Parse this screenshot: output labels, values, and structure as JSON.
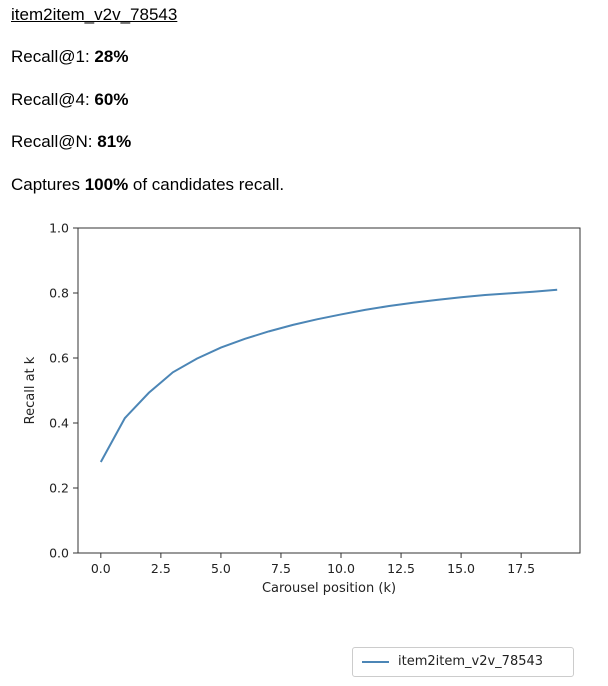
{
  "report": {
    "title": "item2item_v2v_78543",
    "metrics": [
      {
        "prefix": "Recall@1: ",
        "value": "28%",
        "suffix": ""
      },
      {
        "prefix": "Recall@4: ",
        "value": "60%",
        "suffix": ""
      },
      {
        "prefix": "Recall@N: ",
        "value": "81%",
        "suffix": ""
      },
      {
        "prefix": "Captures ",
        "value": "100%",
        "suffix": " of candidates recall."
      }
    ]
  },
  "chart_data": {
    "type": "line",
    "title": "",
    "xlabel": "Carousel position (k)",
    "ylabel": "Recall at k",
    "xlim": [
      -0.95,
      19.95
    ],
    "ylim": [
      0,
      1
    ],
    "x_ticks": [
      0,
      2.5,
      5,
      7.5,
      10,
      12.5,
      15,
      17.5
    ],
    "x_tick_labels": [
      "0.0",
      "2.5",
      "5.0",
      "7.5",
      "10.0",
      "12.5",
      "15.0",
      "17.5"
    ],
    "y_ticks": [
      0,
      0.2,
      0.4,
      0.6,
      0.8,
      1.0
    ],
    "y_tick_labels": [
      "0.0",
      "0.2",
      "0.4",
      "0.6",
      "0.8",
      "1.0"
    ],
    "grid": false,
    "legend_position": "below-right",
    "x": [
      0,
      1,
      2,
      3,
      4,
      5,
      6,
      7,
      8,
      9,
      10,
      11,
      12,
      13,
      14,
      15,
      16,
      17,
      18,
      19
    ],
    "series": [
      {
        "name": "item2item_v2v_78543",
        "color": "#4c86b6",
        "values": [
          0.28,
          0.415,
          0.493,
          0.556,
          0.598,
          0.632,
          0.659,
          0.682,
          0.702,
          0.719,
          0.734,
          0.748,
          0.76,
          0.77,
          0.779,
          0.787,
          0.794,
          0.799,
          0.804,
          0.81
        ]
      }
    ]
  }
}
